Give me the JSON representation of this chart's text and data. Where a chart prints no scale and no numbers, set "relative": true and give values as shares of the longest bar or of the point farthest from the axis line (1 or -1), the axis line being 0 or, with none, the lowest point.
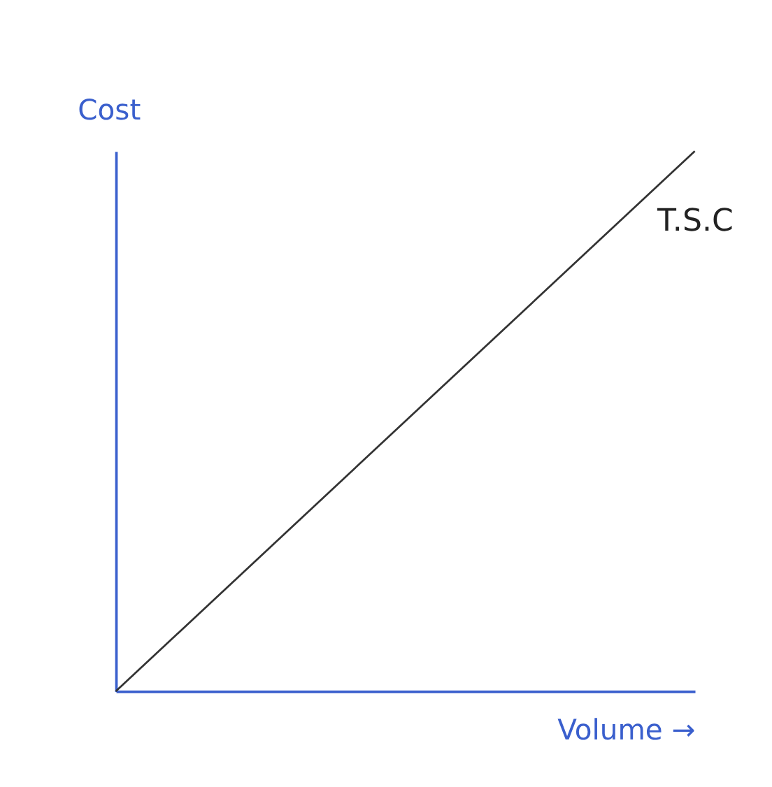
{
  "chart_data": {
    "type": "line",
    "xlabel": "Volume →",
    "ylabel": "Cost",
    "categories": [
      null,
      null
    ],
    "relative": true,
    "series": [
      {
        "color": "#333333",
        "values": [
          0,
          1
        ]
      }
    ],
    "annotations": [
      "T.S.C"
    ],
    "grid": false,
    "legend": false,
    "tick_labels": false,
    "marker": "none",
    "line_style": "solid"
  }
}
